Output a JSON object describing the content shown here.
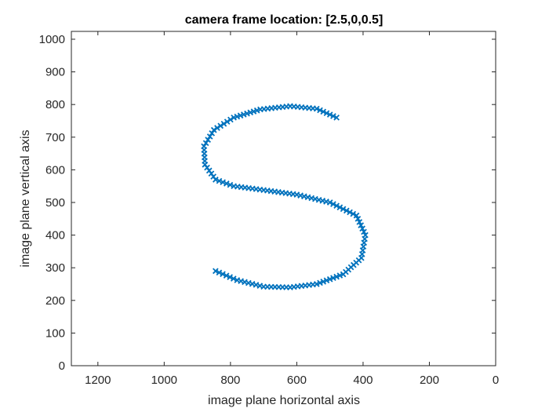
{
  "chart_data": {
    "type": "scatter",
    "title": "camera frame location: [2.5,0,0.5]",
    "xlabel": "image plane horizontal axis",
    "ylabel": "image plane vertical axis",
    "xlim": [
      0,
      1280
    ],
    "ylim": [
      0,
      1024
    ],
    "x_reversed": true,
    "xticks": [
      1200,
      1000,
      800,
      600,
      400,
      200,
      0
    ],
    "yticks": [
      0,
      100,
      200,
      300,
      400,
      500,
      600,
      700,
      800,
      900,
      1000
    ],
    "grid": false,
    "marker": "x",
    "color": "#0072BD",
    "series": [
      {
        "control_points": [
          [
            480,
            760
          ],
          [
            540,
            787
          ],
          [
            620,
            795
          ],
          [
            710,
            785
          ],
          [
            790,
            760
          ],
          [
            850,
            722
          ],
          [
            880,
            672
          ],
          [
            877,
            616
          ],
          [
            845,
            570
          ],
          [
            790,
            550
          ],
          [
            700,
            538
          ],
          [
            600,
            524
          ],
          [
            500,
            500
          ],
          [
            420,
            460
          ],
          [
            393,
            400
          ],
          [
            405,
            330
          ],
          [
            460,
            280
          ],
          [
            540,
            250
          ],
          [
            620,
            240
          ],
          [
            700,
            242
          ],
          [
            780,
            262
          ],
          [
            845,
            290
          ]
        ]
      }
    ]
  }
}
